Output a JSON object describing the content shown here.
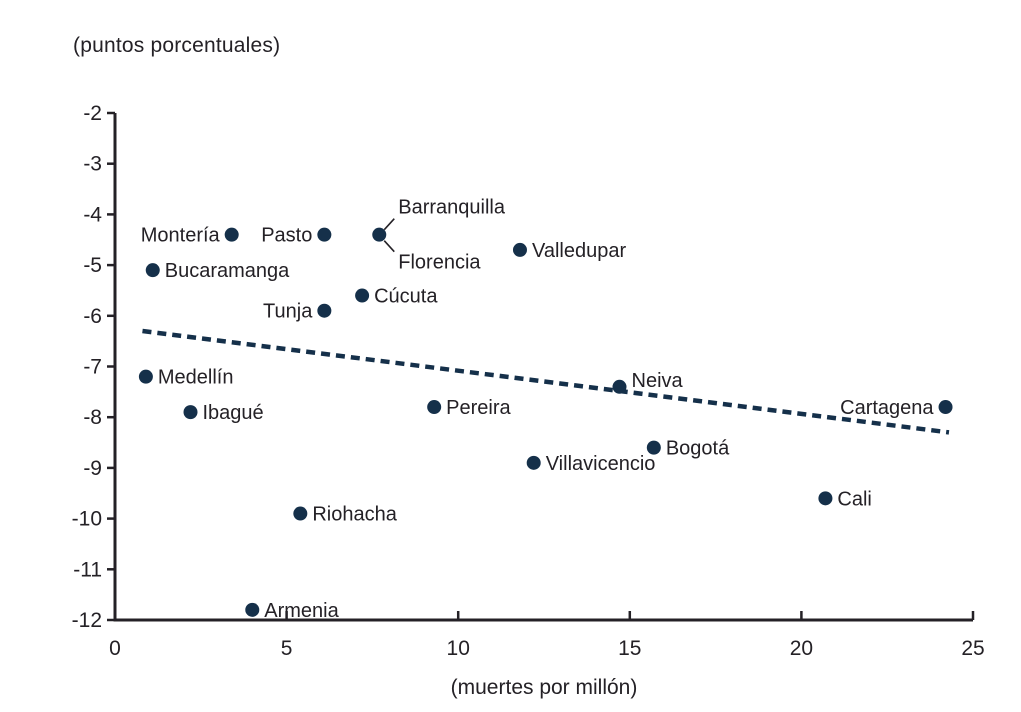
{
  "chart_data": {
    "type": "scatter",
    "title": "(puntos porcentuales)",
    "xlabel": "(muertes por millón)",
    "xlim": [
      0,
      25
    ],
    "ylim": [
      -12,
      -2
    ],
    "x_ticks": [
      0,
      5,
      10,
      15,
      20,
      25
    ],
    "y_ticks": [
      -2,
      -3,
      -4,
      -5,
      -6,
      -7,
      -8,
      -9,
      -10,
      -11,
      -12
    ],
    "grid": false,
    "legend": "none",
    "colors": {
      "dot": "#15304a",
      "trend": "#15304a",
      "text": "#242126",
      "axis": "#242126"
    },
    "points": [
      {
        "label": "Medellín",
        "x": 0.9,
        "y": -7.2,
        "side": "right"
      },
      {
        "label": "Bucaramanga",
        "x": 1.1,
        "y": -5.1,
        "side": "right"
      },
      {
        "label": "Ibagué",
        "x": 2.2,
        "y": -7.9,
        "side": "right"
      },
      {
        "label": "Montería",
        "x": 3.4,
        "y": -4.4,
        "side": "left"
      },
      {
        "label": "Armenia",
        "x": 4.0,
        "y": -11.8,
        "side": "right"
      },
      {
        "label": "Riohacha",
        "x": 5.4,
        "y": -9.9,
        "side": "right"
      },
      {
        "label": "Pasto",
        "x": 6.1,
        "y": -4.4,
        "side": "left"
      },
      {
        "label": "Tunja",
        "x": 6.1,
        "y": -5.9,
        "side": "left"
      },
      {
        "label": "Cúcuta",
        "x": 7.2,
        "y": -5.6,
        "side": "right"
      },
      {
        "label": "Barranquilla",
        "x": 7.7,
        "y": -4.4,
        "side": "callout-above"
      },
      {
        "label": "Florencia",
        "x": 7.7,
        "y": -4.4,
        "side": "callout-below",
        "shares_dot_with": "Barranquilla"
      },
      {
        "label": "Pereira",
        "x": 9.3,
        "y": -7.8,
        "side": "right"
      },
      {
        "label": "Valledupar",
        "x": 11.8,
        "y": -4.7,
        "side": "right"
      },
      {
        "label": "Villavicencio",
        "x": 12.2,
        "y": -8.9,
        "side": "right"
      },
      {
        "label": "Neiva",
        "x": 14.7,
        "y": -7.4,
        "side": "right",
        "label_dy": -7
      },
      {
        "label": "Bogotá",
        "x": 15.7,
        "y": -8.6,
        "side": "right"
      },
      {
        "label": "Cali",
        "x": 20.7,
        "y": -9.6,
        "side": "right"
      },
      {
        "label": "Cartagena",
        "x": 24.2,
        "y": -7.8,
        "side": "left"
      }
    ],
    "trend_line": {
      "style": "dashed",
      "from": {
        "x": 0.8,
        "y": -6.3
      },
      "to": {
        "x": 24.3,
        "y": -8.3
      }
    }
  }
}
